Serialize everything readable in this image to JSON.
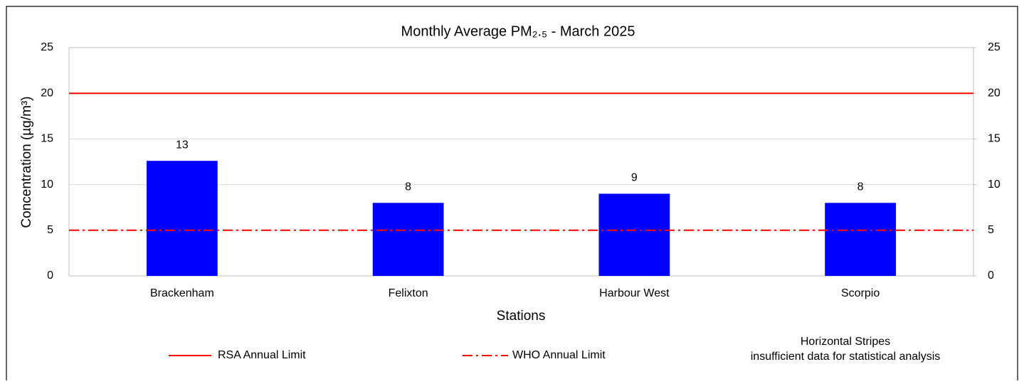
{
  "chart_data": {
    "type": "bar",
    "title": "Monthly Average  PM₂.₅ - March 2025",
    "y_label": "Concentration (µg/m³)",
    "x_label": "Stations",
    "categories": [
      "Brackenham",
      "Felixton",
      "Harbour West",
      "Scorpio"
    ],
    "values": [
      12.6,
      8,
      9,
      8
    ],
    "value_labels": [
      "13",
      "8",
      "9",
      "8"
    ],
    "color": "#0000ff",
    "ylim": [
      0,
      25
    ],
    "yticks": [
      0,
      5,
      10,
      15,
      20,
      25
    ],
    "y2lim": [
      0,
      25
    ],
    "y2ticks": [
      0,
      5,
      10,
      15,
      20,
      25
    ],
    "grid": true,
    "reference_lines": [
      {
        "name": "RSA Annual Limit",
        "value": 20,
        "color": "#ff0000",
        "style": "solid"
      },
      {
        "name": "WHO Annual Limit",
        "value": 5,
        "color": "#ff0000",
        "style": "dashdot"
      }
    ],
    "legend_note": [
      "Horizontal Stripes",
      "insufficient data for statistical analysis"
    ]
  }
}
